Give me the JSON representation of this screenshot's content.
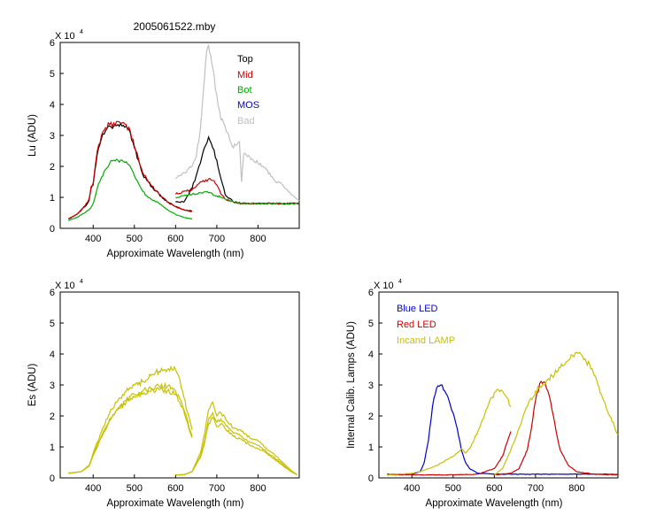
{
  "figure_title": "2005061522.mby",
  "colors": {
    "top": "#000000",
    "mid": "#cc0000",
    "bot": "#00aa00",
    "mos": "#0000cc",
    "bad": "#c0c0c0",
    "es": "#c8c000",
    "blue_led": "#0000cc",
    "red_led": "#cc0000",
    "incand_lamp": "#c8c000"
  },
  "chart_data": [
    {
      "id": "lu",
      "type": "line",
      "title": "",
      "xlabel": "Approximate Wavelength (nm)",
      "ylabel": "Lu (ADU)",
      "exponent_label": "X 10",
      "exponent": "4",
      "xlim": [
        320,
        900
      ],
      "ylim": [
        0,
        6
      ],
      "xticks": [
        400,
        500,
        600,
        700,
        800
      ],
      "yticks": [
        0,
        1,
        2,
        3,
        4,
        5,
        6
      ],
      "legend_placement": "top-right",
      "series": [
        {
          "name": "Top",
          "color_key": "top",
          "segments": [
            {
              "x": [
                340,
                360,
                380,
                390,
                395,
                400,
                410,
                420,
                430,
                440,
                450,
                460,
                470,
                480,
                490,
                500,
                510,
                520,
                530,
                540,
                560,
                580,
                600,
                620,
                640
              ],
              "y": [
                0.3,
                0.45,
                0.7,
                0.9,
                1.3,
                1.4,
                2.4,
                2.9,
                3.15,
                3.3,
                3.3,
                3.35,
                3.3,
                3.3,
                3.1,
                2.6,
                2.2,
                1.75,
                1.55,
                1.35,
                1.1,
                0.85,
                0.7,
                0.6,
                0.55
              ]
            },
            {
              "x": [
                600,
                620,
                640,
                650,
                660,
                670,
                680,
                690,
                700,
                710,
                720,
                740,
                760,
                780,
                800,
                820,
                840,
                860,
                880,
                900
              ],
              "y": [
                0.85,
                0.85,
                1.3,
                1.7,
                2.1,
                2.6,
                2.95,
                2.6,
                2.2,
                1.6,
                1.1,
                0.85,
                0.8,
                0.8,
                0.8,
                0.8,
                0.8,
                0.8,
                0.8,
                0.8
              ]
            }
          ]
        },
        {
          "name": "Mid",
          "color_key": "mid",
          "segments": [
            {
              "x": [
                340,
                360,
                380,
                390,
                395,
                400,
                410,
                420,
                430,
                440,
                450,
                460,
                470,
                480,
                490,
                500,
                510,
                520,
                530,
                540,
                560,
                580,
                600,
                620,
                640
              ],
              "y": [
                0.3,
                0.45,
                0.72,
                0.95,
                1.35,
                1.45,
                2.5,
                3.0,
                3.25,
                3.35,
                3.4,
                3.45,
                3.4,
                3.35,
                3.15,
                2.65,
                2.25,
                1.8,
                1.6,
                1.4,
                1.1,
                0.85,
                0.7,
                0.6,
                0.55
              ]
            },
            {
              "x": [
                600,
                620,
                640,
                650,
                660,
                670,
                680,
                690,
                700,
                710,
                720,
                740,
                760,
                780,
                800,
                820,
                840,
                860,
                880,
                900
              ],
              "y": [
                1.1,
                1.2,
                1.25,
                1.35,
                1.5,
                1.5,
                1.6,
                1.55,
                1.4,
                1.1,
                0.95,
                0.85,
                0.8,
                0.8,
                0.8,
                0.8,
                0.8,
                0.8,
                0.8,
                0.8
              ]
            }
          ]
        },
        {
          "name": "Bot",
          "color_key": "bot",
          "segments": [
            {
              "x": [
                340,
                360,
                380,
                390,
                400,
                410,
                420,
                430,
                440,
                450,
                460,
                470,
                480,
                490,
                500,
                510,
                520,
                530,
                540,
                560,
                580,
                600,
                620,
                640
              ],
              "y": [
                0.25,
                0.35,
                0.5,
                0.6,
                0.8,
                1.3,
                1.65,
                1.9,
                2.1,
                2.2,
                2.2,
                2.2,
                2.15,
                2.0,
                1.7,
                1.45,
                1.2,
                1.05,
                0.95,
                0.8,
                0.6,
                0.45,
                0.35,
                0.3
              ]
            },
            {
              "x": [
                600,
                620,
                640,
                660,
                680,
                700,
                720,
                740,
                760,
                780,
                800,
                840,
                880,
                900
              ],
              "y": [
                1.0,
                1.05,
                1.1,
                1.15,
                1.15,
                1.05,
                0.95,
                0.85,
                0.8,
                0.8,
                0.8,
                0.8,
                0.8,
                0.8
              ]
            }
          ]
        },
        {
          "name": "MOS",
          "color_key": "mos",
          "segments": []
        },
        {
          "name": "Bad",
          "color_key": "bad",
          "segments": [
            {
              "x": [
                600,
                620,
                640,
                650,
                660,
                670,
                675,
                680,
                685,
                690,
                700,
                710,
                720,
                740,
                755,
                760,
                765,
                780,
                800,
                820,
                840,
                860,
                880,
                900
              ],
              "y": [
                1.6,
                1.8,
                2.0,
                2.3,
                3.2,
                4.8,
                5.7,
                5.9,
                5.6,
                5.2,
                4.3,
                3.5,
                3.3,
                2.6,
                2.8,
                1.5,
                2.4,
                2.3,
                2.1,
                1.9,
                1.55,
                1.4,
                1.1,
                0.9
              ]
            }
          ]
        }
      ]
    },
    {
      "id": "es",
      "type": "line",
      "title": "",
      "xlabel": "Approximate Wavelength (nm)",
      "ylabel": "Es (ADU)",
      "exponent_label": "X 10",
      "exponent": "4",
      "xlim": [
        320,
        900
      ],
      "ylim": [
        0,
        6
      ],
      "xticks": [
        400,
        500,
        600,
        700,
        800
      ],
      "yticks": [
        0,
        1,
        2,
        3,
        4,
        5,
        6
      ],
      "series": [
        {
          "color_key": "es",
          "segments": [
            {
              "x": [
                340,
                370,
                390,
                400,
                420,
                440,
                460,
                480,
                500,
                520,
                540,
                560,
                580,
                600,
                610,
                620,
                640
              ],
              "y": [
                0.15,
                0.2,
                0.4,
                0.8,
                1.5,
                2.1,
                2.5,
                2.8,
                3.0,
                3.1,
                3.3,
                3.45,
                3.5,
                3.5,
                3.2,
                2.6,
                1.55
              ]
            },
            {
              "x": [
                340,
                370,
                390,
                400,
                420,
                440,
                460,
                480,
                500,
                520,
                540,
                560,
                580,
                600,
                610,
                620,
                640
              ],
              "y": [
                0.15,
                0.2,
                0.38,
                0.75,
                1.35,
                1.9,
                2.25,
                2.5,
                2.7,
                2.8,
                2.9,
                2.95,
                2.95,
                2.8,
                2.55,
                2.2,
                1.35
              ]
            },
            {
              "x": [
                340,
                370,
                390,
                400,
                420,
                440,
                460,
                480,
                500,
                520,
                540,
                560,
                580,
                600,
                610,
                620,
                640
              ],
              "y": [
                0.15,
                0.2,
                0.37,
                0.72,
                1.3,
                1.85,
                2.2,
                2.45,
                2.6,
                2.7,
                2.8,
                2.85,
                2.8,
                2.7,
                2.45,
                2.15,
                1.3
              ]
            },
            {
              "x": [
                600,
                620,
                640,
                660,
                670,
                680,
                690,
                700,
                710,
                720,
                740,
                760,
                780,
                800,
                820,
                840,
                860,
                880,
                895
              ],
              "y": [
                0.1,
                0.1,
                0.2,
                0.8,
                1.4,
                2.2,
                2.45,
                2.0,
                2.1,
                1.95,
                1.6,
                1.5,
                1.3,
                1.2,
                0.95,
                0.75,
                0.5,
                0.25,
                0.1
              ]
            },
            {
              "x": [
                600,
                620,
                640,
                660,
                670,
                680,
                690,
                700,
                710,
                720,
                740,
                760,
                780,
                800,
                820,
                840,
                860,
                880,
                895
              ],
              "y": [
                0.1,
                0.1,
                0.2,
                0.7,
                1.2,
                1.9,
                2.1,
                1.8,
                1.9,
                1.75,
                1.45,
                1.35,
                1.15,
                1.05,
                0.85,
                0.65,
                0.45,
                0.2,
                0.1
              ]
            },
            {
              "x": [
                600,
                620,
                640,
                660,
                670,
                680,
                690,
                700,
                710,
                720,
                740,
                760,
                780,
                800,
                820,
                840,
                860,
                880,
                895
              ],
              "y": [
                0.1,
                0.1,
                0.2,
                0.65,
                1.1,
                1.75,
                1.95,
                1.65,
                1.75,
                1.6,
                1.35,
                1.25,
                1.05,
                0.95,
                0.8,
                0.6,
                0.4,
                0.2,
                0.1
              ]
            }
          ]
        }
      ]
    },
    {
      "id": "lamps",
      "type": "line",
      "title": "",
      "xlabel": "Approximate Wavelength (nm)",
      "ylabel": "Internal Calib. Lamps (ADU)",
      "exponent_label": "X 10",
      "exponent": "4",
      "xlim": [
        320,
        900
      ],
      "ylim": [
        0,
        6
      ],
      "xticks": [
        400,
        500,
        600,
        700,
        800
      ],
      "yticks": [
        0,
        1,
        2,
        3,
        4,
        5,
        6
      ],
      "legend_placement": "top-left",
      "series": [
        {
          "name": "Blue LED",
          "color_key": "blue_led",
          "segments": [
            {
              "x": [
                340,
                400,
                420,
                430,
                440,
                450,
                460,
                470,
                480,
                490,
                500,
                510,
                520,
                530,
                540,
                560,
                600,
                640,
                700,
                800,
                900
              ],
              "y": [
                0.12,
                0.12,
                0.2,
                0.5,
                1.2,
                2.3,
                2.9,
                3.0,
                2.8,
                2.5,
                2.1,
                1.6,
                0.9,
                0.5,
                0.3,
                0.15,
                0.12,
                0.12,
                0.12,
                0.12,
                0.12
              ]
            }
          ]
        },
        {
          "name": "Red LED",
          "color_key": "red_led",
          "segments": [
            {
              "x": [
                340,
                500,
                560,
                600,
                620,
                640
              ],
              "y": [
                0.1,
                0.1,
                0.12,
                0.3,
                0.7,
                1.5
              ]
            },
            {
              "x": [
                600,
                640,
                660,
                680,
                690,
                700,
                710,
                720,
                730,
                740,
                750,
                760,
                780,
                800,
                840,
                900
              ],
              "y": [
                0.1,
                0.15,
                0.3,
                0.9,
                1.6,
                2.5,
                3.05,
                3.1,
                2.8,
                2.2,
                1.5,
                0.9,
                0.4,
                0.2,
                0.12,
                0.1
              ]
            }
          ]
        },
        {
          "name": "Incand LAMP",
          "color_key": "incand_lamp",
          "segments": [
            {
              "x": [
                340,
                400,
                420,
                440,
                460,
                480,
                500,
                510,
                520,
                530,
                540,
                560,
                580,
                600,
                610,
                620,
                630,
                640
              ],
              "y": [
                0.1,
                0.15,
                0.2,
                0.3,
                0.4,
                0.55,
                0.7,
                0.8,
                0.95,
                0.8,
                0.95,
                1.5,
                2.2,
                2.75,
                2.85,
                2.8,
                2.6,
                2.3
              ]
            },
            {
              "x": [
                600,
                620,
                640,
                660,
                680,
                700,
                720,
                740,
                760,
                780,
                790,
                800,
                810,
                820,
                840,
                860,
                880,
                900
              ],
              "y": [
                0.1,
                0.3,
                0.9,
                1.6,
                2.3,
                2.8,
                3.0,
                3.3,
                3.55,
                3.8,
                3.95,
                4.05,
                4.0,
                3.85,
                3.4,
                2.7,
                2.0,
                1.4
              ]
            }
          ]
        }
      ]
    }
  ]
}
